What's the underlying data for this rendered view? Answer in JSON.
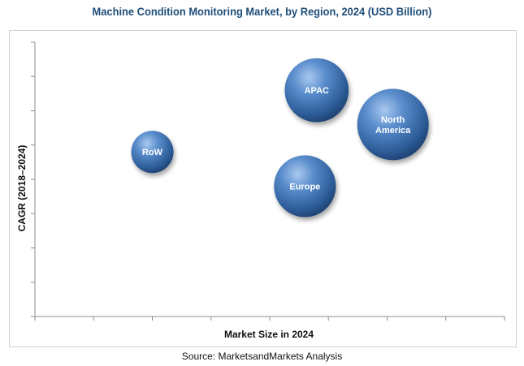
{
  "title": "Machine Condition Monitoring Market, by Region, 2024 (USD Billion)",
  "source": "Source: MarketsandMarkets Analysis",
  "chart_data": {
    "type": "bubble",
    "xlabel": "Market Size in 2024",
    "ylabel": "CAGR (2018–2024)",
    "xlim": [
      0,
      8
    ],
    "ylim": [
      0,
      8
    ],
    "grid": false,
    "series": [
      {
        "label_lines": [
          "RoW"
        ],
        "x": 2.0,
        "y": 4.8,
        "size": 0.35
      },
      {
        "label_lines": [
          "Europe"
        ],
        "x": 4.6,
        "y": 3.8,
        "size": 0.75
      },
      {
        "label_lines": [
          "APAC"
        ],
        "x": 4.8,
        "y": 6.6,
        "size": 0.8
      },
      {
        "label_lines": [
          "North",
          "America"
        ],
        "x": 6.1,
        "y": 5.6,
        "size": 1.0
      }
    ],
    "bubble_color": "#3a6fb0"
  }
}
